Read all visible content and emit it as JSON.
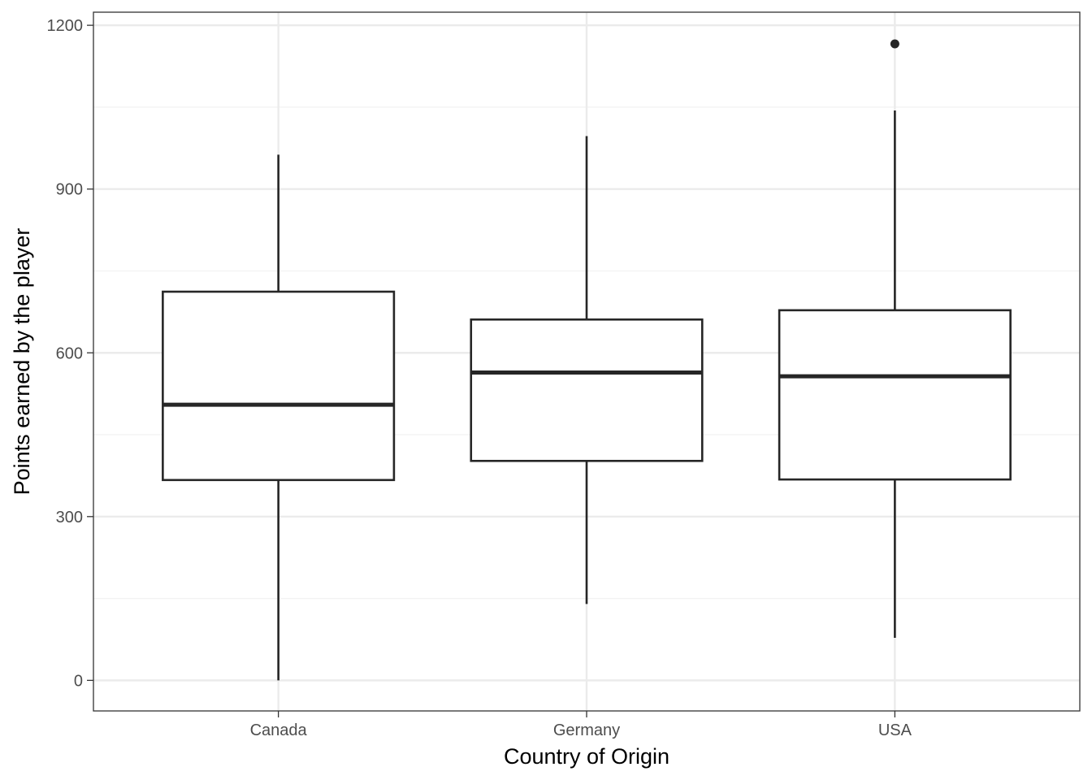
{
  "chart_data": {
    "type": "boxplot",
    "title": "",
    "xlabel": "Country of Origin",
    "ylabel": "Points earned by the player",
    "categories": [
      "Canada",
      "Germany",
      "USA"
    ],
    "boxes": [
      {
        "category": "Canada",
        "whisker_low": 0,
        "q1": 367,
        "median": 505,
        "q3": 712,
        "whisker_high": 963,
        "outliers": []
      },
      {
        "category": "Germany",
        "whisker_low": 140,
        "q1": 402,
        "median": 564,
        "q3": 661,
        "whisker_high": 997,
        "outliers": []
      },
      {
        "category": "USA",
        "whisker_low": 78,
        "q1": 368,
        "median": 557,
        "q3": 678,
        "whisker_high": 1044,
        "outliers": [
          1166
        ]
      }
    ],
    "ylim": [
      -56,
      1224
    ],
    "yticks": [
      0,
      300,
      600,
      900,
      1200
    ],
    "yticks_labels": [
      "0",
      "300",
      "600",
      "900",
      "1200"
    ],
    "grid": true,
    "legend": "none",
    "colors": {
      "box_fill": "#ffffff",
      "box_stroke": "#262626",
      "grid_major": "#ebebeb",
      "grid_minor": "#f2f2f2",
      "panel_border": "#333333",
      "tick_label": "#4d4d4d"
    }
  }
}
